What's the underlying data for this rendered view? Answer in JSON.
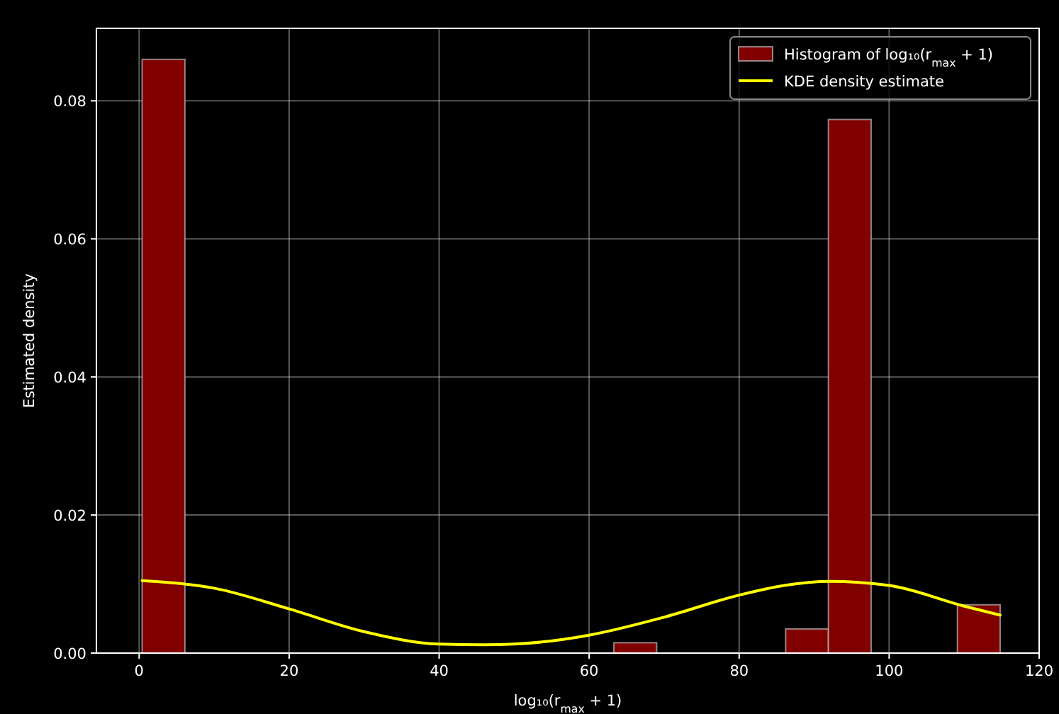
{
  "chart_data": {
    "type": "histogram",
    "xlabel": "log₁₀(r$_{max}$ + 1)",
    "ylabel": "Estimated density",
    "bins": [
      0.4,
      6.1,
      63.3,
      69.0,
      86.2,
      91.9,
      97.6,
      109.1,
      114.8
    ],
    "series": [
      {
        "name": "Histogram of log₁₀(r$_{max}$ + 1)",
        "color": "#800000",
        "values": [
          0.086,
          0,
          0.0015,
          0,
          0.0035,
          0.0773,
          0,
          0.007
        ]
      },
      {
        "name": "KDE density estimate",
        "type": "line",
        "color": "#ffff00",
        "x": [
          0.4,
          10,
          20,
          30,
          40,
          46,
          50,
          60,
          70,
          80,
          86,
          92,
          100,
          110,
          114.8
        ],
        "values": [
          0.0105,
          0.0094,
          0.0064,
          0.0031,
          0.0013,
          0.0012,
          0.0013,
          0.0026,
          0.0052,
          0.0084,
          0.0098,
          0.0104,
          0.0098,
          0.0068,
          0.0055
        ]
      }
    ],
    "xlim": [
      -5.7,
      120
    ],
    "ylim": [
      0,
      0.0905
    ],
    "xticks": [
      0,
      20,
      40,
      60,
      80,
      100,
      120
    ],
    "yticks": [
      {
        "value": 0,
        "label": "0.00"
      },
      {
        "value": 0.02,
        "label": "0.02"
      },
      {
        "value": 0.04,
        "label": "0.04"
      },
      {
        "value": 0.06,
        "label": "0.06"
      },
      {
        "value": 0.08,
        "label": "0.08"
      }
    ],
    "grid": true,
    "legend": "top right"
  }
}
